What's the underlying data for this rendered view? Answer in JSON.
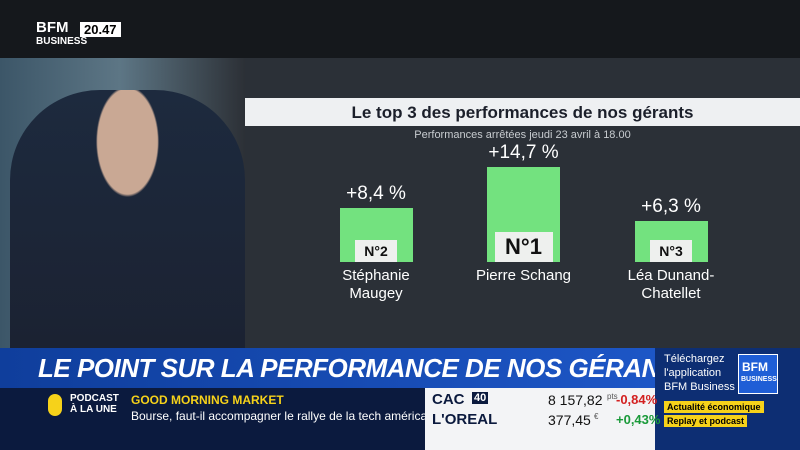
{
  "channel": {
    "logo_top": "BFM",
    "logo_bottom": "BUSINESS",
    "clock": "20.47"
  },
  "chart_data": {
    "type": "bar",
    "title": "Le top 3 des performances de nos gérants",
    "subtitle": "Performances arrêtées jeudi 23 avril à 18.00",
    "categories": [
      "Stéphanie Maugey",
      "Pierre Schang",
      "Léa Dunand-Chatellet"
    ],
    "values": [
      8.4,
      14.7,
      6.3
    ],
    "value_labels": [
      "+8,4 %",
      "+14,7 %",
      "+6,3 %"
    ],
    "rank_labels": [
      "N°2",
      "N°1",
      "N°3"
    ],
    "color": "#73e27f"
  },
  "banner": {
    "headline": "LE POINT SUR LA PERFORMANCE DE NOS GÉRANTS",
    "promo_lines": [
      "Téléchargez",
      "l'application",
      "BFM Business"
    ],
    "promo_logo_top": "BFM",
    "promo_logo_bottom": "BUSINESS"
  },
  "ticker": {
    "tag_top": "PODCAST",
    "tag_bottom": "À LA UNE",
    "show": "GOOD MORNING MARKET",
    "story": "Bourse, faut-il accompagner le rallye de la tech américaine ?",
    "quotes": [
      {
        "name": "CAC",
        "badge": "40",
        "price": "8 157,82",
        "unit": "pts",
        "change": "-0,84%"
      },
      {
        "name": "L'OREAL",
        "badge": "",
        "price": "377,45",
        "unit": "€",
        "change": "+0,43%"
      }
    ],
    "badges": [
      "Actualité économique",
      "Replay et podcast"
    ]
  }
}
